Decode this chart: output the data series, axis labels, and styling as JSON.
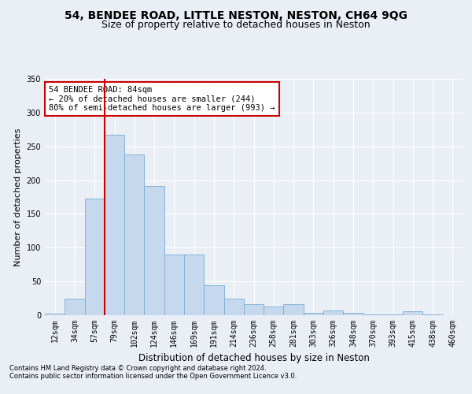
{
  "title1": "54, BENDEE ROAD, LITTLE NESTON, NESTON, CH64 9QG",
  "title2": "Size of property relative to detached houses in Neston",
  "xlabel": "Distribution of detached houses by size in Neston",
  "ylabel": "Number of detached properties",
  "footer1": "Contains HM Land Registry data © Crown copyright and database right 2024.",
  "footer2": "Contains public sector information licensed under the Open Government Licence v3.0.",
  "bin_labels": [
    "12sqm",
    "34sqm",
    "57sqm",
    "79sqm",
    "102sqm",
    "124sqm",
    "146sqm",
    "169sqm",
    "191sqm",
    "214sqm",
    "236sqm",
    "258sqm",
    "281sqm",
    "303sqm",
    "326sqm",
    "348sqm",
    "370sqm",
    "393sqm",
    "415sqm",
    "438sqm",
    "460sqm"
  ],
  "bar_values": [
    2,
    25,
    173,
    267,
    238,
    191,
    90,
    90,
    44,
    25,
    16,
    13,
    16,
    4,
    7,
    4,
    1,
    1,
    6,
    1,
    0
  ],
  "bar_color": "#c5d8ee",
  "bar_edge_color": "#7aaed0",
  "vline_color": "#cc0000",
  "vline_xindex": 3,
  "annotation_text": "54 BENDEE ROAD: 84sqm\n← 20% of detached houses are smaller (244)\n80% of semi-detached houses are larger (993) →",
  "annotation_box_color": "white",
  "annotation_box_edge": "#cc0000",
  "ylim": [
    0,
    350
  ],
  "yticks": [
    0,
    50,
    100,
    150,
    200,
    250,
    300,
    350
  ],
  "background_color": "#eaeff6",
  "plot_bg_color": "#eaeff6",
  "grid_color": "white",
  "title1_fontsize": 10,
  "title2_fontsize": 9,
  "xlabel_fontsize": 8.5,
  "ylabel_fontsize": 8,
  "tick_fontsize": 7,
  "footer_fontsize": 6,
  "annot_fontsize": 7.5
}
